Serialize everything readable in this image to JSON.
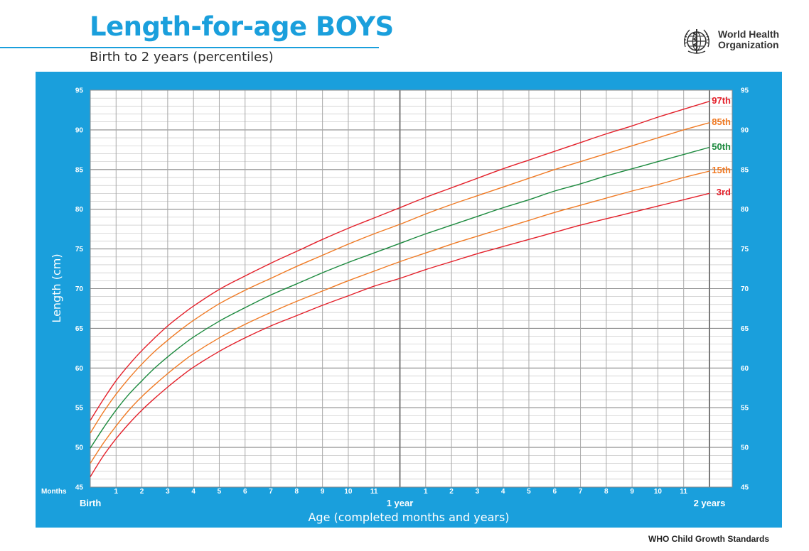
{
  "header": {
    "title": "Length-for-age BOYS",
    "subtitle": "Birth to 2 years (percentiles)",
    "org_line1": "World Health",
    "org_line2": "Organization",
    "logo_icon": "who-emblem-icon"
  },
  "footer": {
    "text": "WHO Child Growth Standards"
  },
  "colors": {
    "panel": "#1a9fdc",
    "p97": "#e4202a",
    "p85": "#f07a24",
    "p50": "#1c8a3e",
    "p15": "#f07a24",
    "p3": "#e4202a"
  },
  "chart_data": {
    "type": "line",
    "ylabel": "Length (cm)",
    "xlabel": "Age (completed months and years)",
    "x_unit_label": "Months",
    "ylim": [
      45,
      95
    ],
    "xlim": [
      0,
      24
    ],
    "y_ticks": [
      45,
      50,
      55,
      60,
      65,
      70,
      75,
      80,
      85,
      90,
      95
    ],
    "x_month_ticks": [
      {
        "month": 1,
        "label": "1"
      },
      {
        "month": 2,
        "label": "2"
      },
      {
        "month": 3,
        "label": "3"
      },
      {
        "month": 4,
        "label": "4"
      },
      {
        "month": 5,
        "label": "5"
      },
      {
        "month": 6,
        "label": "6"
      },
      {
        "month": 7,
        "label": "7"
      },
      {
        "month": 8,
        "label": "8"
      },
      {
        "month": 9,
        "label": "9"
      },
      {
        "month": 10,
        "label": "10"
      },
      {
        "month": 11,
        "label": "11"
      },
      {
        "month": 13,
        "label": "1"
      },
      {
        "month": 14,
        "label": "2"
      },
      {
        "month": 15,
        "label": "3"
      },
      {
        "month": 16,
        "label": "4"
      },
      {
        "month": 17,
        "label": "5"
      },
      {
        "month": 18,
        "label": "6"
      },
      {
        "month": 19,
        "label": "7"
      },
      {
        "month": 20,
        "label": "8"
      },
      {
        "month": 21,
        "label": "9"
      },
      {
        "month": 22,
        "label": "10"
      },
      {
        "month": 23,
        "label": "11"
      }
    ],
    "x_year_labels": [
      {
        "month": 0,
        "label": "Birth"
      },
      {
        "month": 12,
        "label": "1 year"
      },
      {
        "month": 24,
        "label": "2 years"
      }
    ],
    "x": [
      0,
      0.5,
      1,
      1.5,
      2,
      2.5,
      3,
      3.5,
      4,
      5,
      6,
      7,
      8,
      9,
      10,
      11,
      12,
      13,
      14,
      15,
      16,
      17,
      18,
      19,
      20,
      21,
      22,
      23,
      24
    ],
    "series": [
      {
        "name": "97th",
        "color_key": "p97",
        "values": [
          53.4,
          56.0,
          58.4,
          60.4,
          62.2,
          63.8,
          65.3,
          66.6,
          67.8,
          69.9,
          71.6,
          73.2,
          74.7,
          76.2,
          77.6,
          78.9,
          80.2,
          81.5,
          82.7,
          83.9,
          85.1,
          86.2,
          87.3,
          88.4,
          89.5,
          90.5,
          91.6,
          92.6,
          93.6
        ]
      },
      {
        "name": "85th",
        "color_key": "p85",
        "values": [
          51.8,
          54.4,
          56.7,
          58.7,
          60.5,
          62.1,
          63.5,
          64.8,
          66.0,
          68.1,
          69.8,
          71.3,
          72.8,
          74.2,
          75.6,
          76.9,
          78.1,
          79.4,
          80.6,
          81.7,
          82.8,
          83.9,
          85.0,
          86.0,
          87.0,
          88.0,
          89.0,
          90.0,
          90.9
        ]
      },
      {
        "name": "50th",
        "color_key": "p50",
        "values": [
          49.9,
          52.4,
          54.7,
          56.7,
          58.4,
          60.0,
          61.4,
          62.7,
          63.9,
          65.9,
          67.6,
          69.2,
          70.6,
          72.0,
          73.3,
          74.5,
          75.7,
          76.9,
          78.0,
          79.1,
          80.2,
          81.2,
          82.3,
          83.2,
          84.2,
          85.1,
          86.0,
          86.9,
          87.8
        ]
      },
      {
        "name": "15th",
        "color_key": "p15",
        "values": [
          48.0,
          50.5,
          52.7,
          54.7,
          56.4,
          57.9,
          59.3,
          60.6,
          61.8,
          63.8,
          65.5,
          67.0,
          68.4,
          69.7,
          71.0,
          72.2,
          73.4,
          74.5,
          75.6,
          76.6,
          77.6,
          78.6,
          79.6,
          80.5,
          81.4,
          82.3,
          83.1,
          84.0,
          84.8
        ]
      },
      {
        "name": "3rd",
        "color_key": "p3",
        "values": [
          46.3,
          48.9,
          51.1,
          53.0,
          54.7,
          56.2,
          57.6,
          58.9,
          60.1,
          62.1,
          63.8,
          65.3,
          66.6,
          67.9,
          69.1,
          70.3,
          71.3,
          72.4,
          73.4,
          74.4,
          75.3,
          76.2,
          77.1,
          78.0,
          78.8,
          79.6,
          80.4,
          81.2,
          82.0
        ]
      }
    ]
  }
}
